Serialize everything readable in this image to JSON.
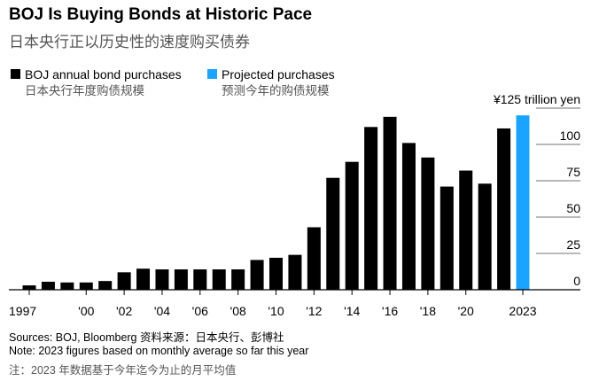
{
  "chart_data": {
    "type": "bar",
    "title": "BOJ Is Buying Bonds at Historic Pace",
    "subtitle": "日本央行正以历史性的速度购买债券",
    "categories": [
      "1997",
      null,
      null,
      "'00",
      null,
      "'02",
      null,
      "'04",
      null,
      "'06",
      null,
      "'08",
      null,
      "'10",
      null,
      "'12",
      null,
      "'14",
      null,
      "'16",
      null,
      "'18",
      null,
      "'20",
      null,
      null,
      "2023"
    ],
    "series": [
      {
        "name": "BOJ annual bond purchases",
        "name_zh": "日本央行年度购债规模",
        "color": "#000000",
        "values": [
          3,
          5.5,
          5,
          5,
          6,
          12,
          14.5,
          14,
          14,
          14,
          14,
          14,
          20.5,
          22,
          24,
          43,
          77,
          88,
          112,
          119,
          101,
          91,
          71,
          82,
          73,
          111,
          null
        ]
      },
      {
        "name": "Projected purchases",
        "name_zh": "预测今年的购债规模",
        "color": "#1aa3ff",
        "values": [
          null,
          null,
          null,
          null,
          null,
          null,
          null,
          null,
          null,
          null,
          null,
          null,
          null,
          null,
          null,
          null,
          null,
          null,
          null,
          null,
          null,
          null,
          null,
          null,
          null,
          null,
          120
        ]
      }
    ],
    "ylim": [
      0,
      125
    ],
    "yticks": [
      0,
      25,
      50,
      75,
      100,
      {
        "value": 125,
        "label": "¥125 trillion yen"
      }
    ],
    "grid": true,
    "footnotes": [
      "Sources: BOJ, Bloomberg 资料来源：日本央行、彭博社",
      "Note: 2023 figures based on monthly average so far this year",
      "注：2023 年数据基于今年迄今为止的月平均值"
    ]
  }
}
